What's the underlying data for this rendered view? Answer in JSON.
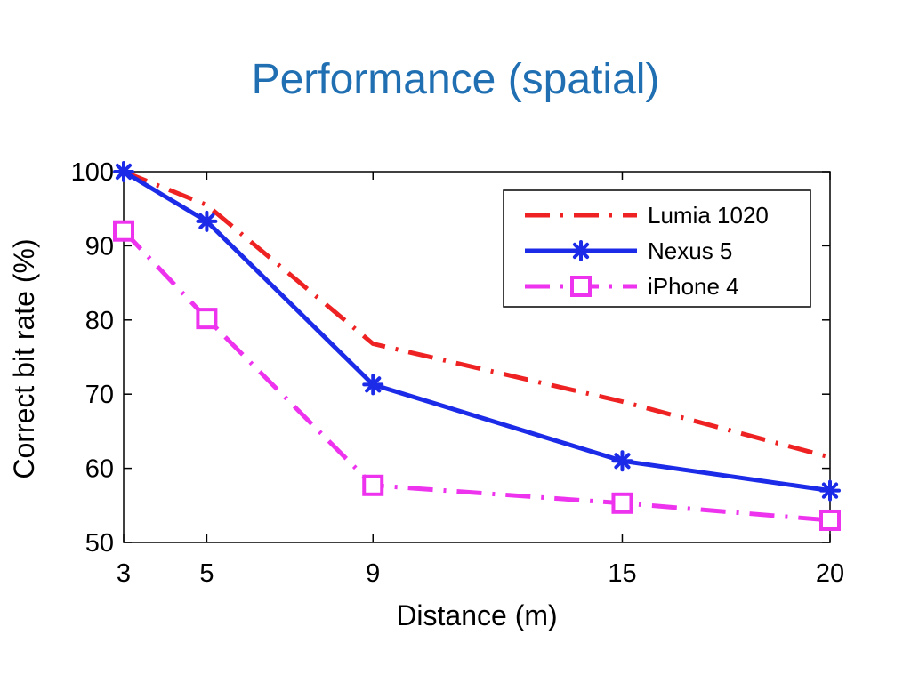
{
  "slide": {
    "title": "Performance (spatial)"
  },
  "chart_data": {
    "type": "line",
    "title": "",
    "xlabel": "Distance (m)",
    "ylabel": "Correct bit rate (%)",
    "x": [
      3,
      5,
      9,
      15,
      20
    ],
    "x_ticks": [
      "3",
      "5",
      "9",
      "15",
      "20"
    ],
    "y_ticks": [
      "50",
      "60",
      "70",
      "80",
      "90",
      "100"
    ],
    "xlim": [
      3,
      20
    ],
    "ylim": [
      50,
      100
    ],
    "grid": false,
    "legend_position": "top-right",
    "series": [
      {
        "name": "Lumia 1020",
        "values": [
          100,
          95.5,
          76.8,
          69,
          61.5
        ],
        "color": "#ee2222",
        "style": "dash-dot",
        "marker": "none"
      },
      {
        "name": "Nexus 5",
        "values": [
          100,
          93.3,
          71.3,
          61,
          57
        ],
        "color": "#1c2be8",
        "style": "solid",
        "marker": "asterisk"
      },
      {
        "name": "iPhone 4",
        "values": [
          92,
          80.2,
          57.7,
          55.3,
          53
        ],
        "color": "#ee33ee",
        "style": "dash-dot",
        "marker": "square"
      }
    ]
  }
}
